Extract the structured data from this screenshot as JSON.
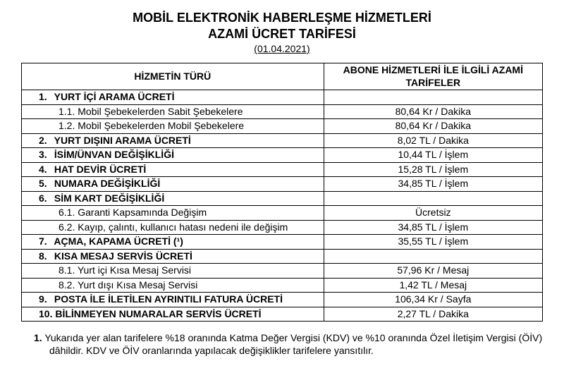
{
  "title_line1": "MOBİL ELEKTRONİK HABERLEŞME HİZMETLERİ",
  "title_line2": "AZAMİ ÜCRET TARİFESİ",
  "date": "(01.04.2021)",
  "columns": {
    "col1": "HİZMETİN TÜRÜ",
    "col2": "ABONE HİZMETLERİ İLE İLGİLİ AZAMİ TARİFELER"
  },
  "rows": [
    {
      "type": "main",
      "num": "1.",
      "label": "YURT İÇİ ARAMA ÜCRETİ",
      "value": ""
    },
    {
      "type": "sub",
      "label": "1.1. Mobil Şebekelerden Sabit Şebekelere",
      "value": "80,64 Kr / Dakika"
    },
    {
      "type": "sub",
      "label": "1.2. Mobil Şebekelerden Mobil Şebekelere",
      "value": "80,64 Kr / Dakika"
    },
    {
      "type": "main",
      "num": "2.",
      "label": "YURT DIŞINI ARAMA ÜCRETİ",
      "value": "8,02 TL / Dakika"
    },
    {
      "type": "main",
      "num": "3.",
      "label": "İSİM/ÜNVAN DEĞİŞİKLİĞİ",
      "value": "10,44 TL / İşlem"
    },
    {
      "type": "main",
      "num": "4.",
      "label": "HAT DEVİR ÜCRETİ",
      "value": "15,28 TL / İşlem"
    },
    {
      "type": "main",
      "num": "5.",
      "label": "NUMARA DEĞİŞİKLİĞİ",
      "value": "34,85 TL / İşlem"
    },
    {
      "type": "main",
      "num": "6.",
      "label": "SİM KART DEĞİŞİKLİĞİ",
      "value": ""
    },
    {
      "type": "sub",
      "label": "6.1. Garanti Kapsamında Değişim",
      "value": "Ücretsiz"
    },
    {
      "type": "sub",
      "label": "6.2. Kayıp, çalıntı, kullanıcı hatası nedeni ile değişim",
      "value": "34,85 TL / İşlem"
    },
    {
      "type": "main",
      "num": "7.",
      "label": "AÇMA, KAPAMA ÜCRETİ (¹)",
      "value": "35,55 TL / İşlem"
    },
    {
      "type": "main",
      "num": "8.",
      "label": "KISA MESAJ SERVİS ÜCRETİ",
      "value": ""
    },
    {
      "type": "sub",
      "label": "8.1. Yurt içi Kısa Mesaj Servisi",
      "value": "57,96 Kr / Mesaj"
    },
    {
      "type": "sub",
      "label": "8.2. Yurt dışı Kısa Mesaj Servisi",
      "value": "1,42 TL / Mesaj"
    },
    {
      "type": "main",
      "num": "9.",
      "label": "POSTA İLE İLETİLEN AYRINTILI FATURA ÜCRETİ",
      "value": "106,34 Kr / Sayfa"
    },
    {
      "type": "main",
      "num": "10.",
      "label": "BİLİNMEYEN NUMARALAR SERVİS ÜCRETİ",
      "value": "2,27 TL / Dakika"
    }
  ],
  "footnote": {
    "num": "1.",
    "text": "Yukarıda yer alan tarifelere %18 oranında Katma Değer Vergisi (KDV) ve %10 oranında Özel İletişim Vergisi (ÖİV) dâhildir. KDV ve ÖİV oranlarında yapılacak değişiklikler tarifelere yansıtılır."
  }
}
